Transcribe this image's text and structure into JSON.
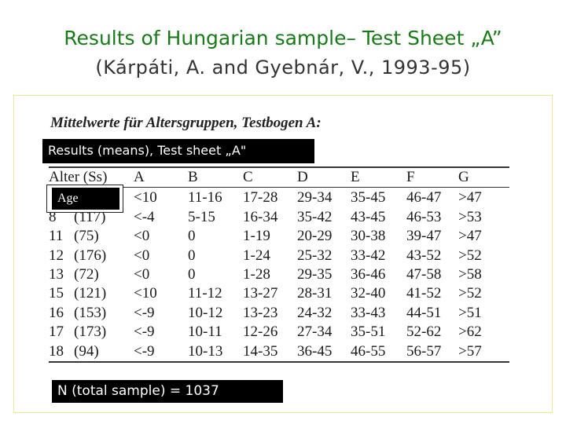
{
  "slide": {
    "title": "Results of Hungarian sample– Test Sheet „A”",
    "subtitle": "(Kárpáti,  A. and Gyebnár, V., 1993-95)"
  },
  "figure": {
    "heading": "Mittelwerte für Altersgruppen,  Testbogen A:",
    "overlay_label": "Results (means),  Test sheet „A\"",
    "age_overlay_label": "Age",
    "footer_label": "N (total sample) = 1037"
  },
  "table": {
    "headers": [
      "Alter (Ss)",
      "A",
      "B",
      "C",
      "D",
      "E",
      "F",
      "G"
    ],
    "rows": [
      {
        "age": "",
        "n": "",
        "cells": [
          "<10",
          "11-16",
          "17-28",
          "29-34",
          "35-45",
          "46-47",
          ">47"
        ]
      },
      {
        "age": "8",
        "n": "(117)",
        "cells": [
          "<-4",
          "5-15",
          "16-34",
          "35-42",
          "43-45",
          "46-53",
          ">53"
        ]
      },
      {
        "age": "11",
        "n": "(75)",
        "cells": [
          "<0",
          "0",
          "1-19",
          "20-29",
          "30-38",
          "39-47",
          ">47"
        ]
      },
      {
        "age": "12",
        "n": "(176)",
        "cells": [
          "<0",
          "0",
          "1-24",
          "25-32",
          "33-42",
          "43-52",
          ">52"
        ]
      },
      {
        "age": "13",
        "n": "(72)",
        "cells": [
          "<0",
          "0",
          "1-28",
          "29-35",
          "36-46",
          "47-58",
          ">58"
        ]
      },
      {
        "age": "15",
        "n": "(121)",
        "cells": [
          "<10",
          "11-12",
          "13-27",
          "28-31",
          "32-40",
          "41-52",
          ">52"
        ]
      },
      {
        "age": "16",
        "n": "(153)",
        "cells": [
          "<-9",
          "10-12",
          "13-23",
          "24-32",
          "33-43",
          "44-51",
          ">51"
        ]
      },
      {
        "age": "17",
        "n": "(173)",
        "cells": [
          "<-9",
          "10-11",
          "12-26",
          "27-34",
          "35-51",
          "52-62",
          ">62"
        ]
      },
      {
        "age": "18",
        "n": "(94)",
        "cells": [
          "<-9",
          "10-13",
          "14-35",
          "36-45",
          "46-55",
          "56-57",
          ">57"
        ]
      }
    ]
  }
}
